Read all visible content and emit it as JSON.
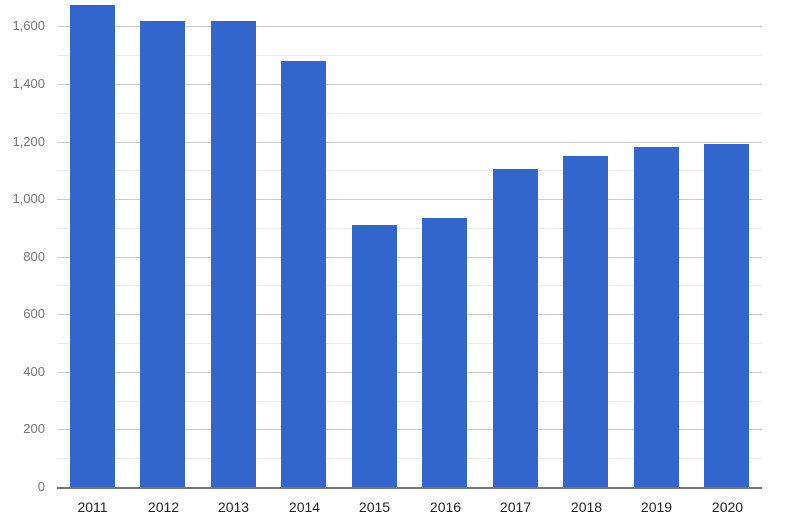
{
  "chart_data": {
    "type": "bar",
    "title": "",
    "xlabel": "",
    "ylabel": "",
    "legend": "none",
    "categories": [
      "2011",
      "2012",
      "2013",
      "2014",
      "2015",
      "2016",
      "2017",
      "2018",
      "2019",
      "2020"
    ],
    "values": [
      1675,
      1620,
      1620,
      1480,
      910,
      935,
      1105,
      1150,
      1180,
      1190
    ],
    "y_axis": {
      "min": 0,
      "max": 1700,
      "max_gridline": 1600,
      "major_step": 200,
      "minor_step": 100,
      "tick_labels": [
        "0",
        "200",
        "400",
        "600",
        "800",
        "1,000",
        "1,200",
        "1,400",
        "1,600"
      ]
    },
    "grid": true,
    "style": {
      "bar_color": "#3366cc",
      "major_gridline_color": "#cccccc",
      "minor_gridline_color": "#ebebeb",
      "baseline_color": "#757575",
      "y_label_color": "#757575",
      "x_label_color": "#222222",
      "background_color": "#ffffff"
    }
  }
}
